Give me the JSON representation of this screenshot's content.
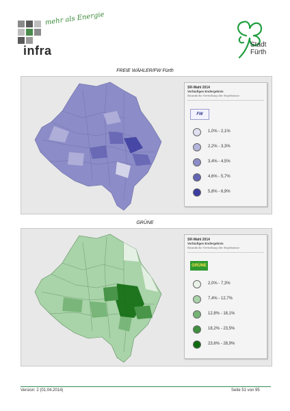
{
  "header": {
    "infra_word": "infra",
    "infra_tagline": "mehr als Energie",
    "city_line1": "Stadt",
    "city_line2": "Fürth"
  },
  "maps": [
    {
      "title": "FREIE WÄHLER/FW Fürth",
      "legend_title": "SR-Wahl 2014",
      "legend_subtitle": "Vorläufiges Endergebnis",
      "legend_note": "Räumliche Verteilung der Ergebnisse",
      "party_logo": "FW",
      "base_color": "#8c8cc8",
      "classes": [
        {
          "label": "1,0% - 2,1%",
          "color": "#e0e0f0"
        },
        {
          "label": "2,2% - 3,3%",
          "color": "#b4b4dc"
        },
        {
          "label": "3,4% - 4,5%",
          "color": "#8c8cc8"
        },
        {
          "label": "4,6% - 5,7%",
          "color": "#6464b4"
        },
        {
          "label": "5,8% - 6,9%",
          "color": "#3c3ca0"
        }
      ]
    },
    {
      "title": "GRÜNE",
      "legend_title": "SR-Wahl 2014",
      "legend_subtitle": "Vorläufiges Endergebnis",
      "legend_note": "Räumliche Verteilung der Ergebnisse",
      "party_logo": "GRÜNE",
      "base_color": "#8fbf8f",
      "classes": [
        {
          "label": "2,0% - 7,3%",
          "color": "#eaf3ea"
        },
        {
          "label": "7,4% - 12,7%",
          "color": "#a9d3a9"
        },
        {
          "label": "12,8% - 18,1%",
          "color": "#74b374"
        },
        {
          "label": "18,2% - 23,5%",
          "color": "#3f8f3f"
        },
        {
          "label": "23,6% - 28,9%",
          "color": "#0f6b0f"
        }
      ]
    }
  ],
  "footer": {
    "version": "Version: 2 (01.04.2014)",
    "page": "Seite 51 von 95"
  }
}
